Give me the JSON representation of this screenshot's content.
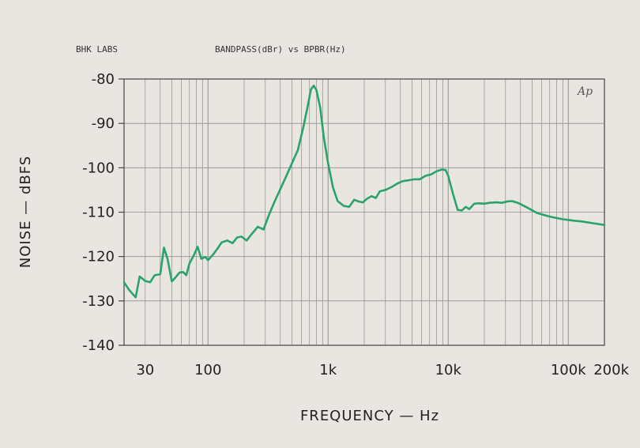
{
  "chart_data": {
    "type": "line",
    "header_left": "BHK LABS",
    "header_title": "BANDPASS(dBr) vs BPBR(Hz)",
    "watermark": "Ap",
    "xlabel": "FREQUENCY — Hz",
    "ylabel": "NOISE — dBFS",
    "x_scale": "log",
    "xlim": [
      20,
      200000
    ],
    "ylim": [
      -140,
      -80
    ],
    "x_ticks": [
      {
        "value": 30,
        "label": "30"
      },
      {
        "value": 100,
        "label": "100"
      },
      {
        "value": 1000,
        "label": "1k"
      },
      {
        "value": 10000,
        "label": "10k"
      },
      {
        "value": 100000,
        "label": "100k"
      },
      {
        "value": 200000,
        "label": "200k"
      }
    ],
    "y_ticks": [
      {
        "value": -80,
        "label": "-80"
      },
      {
        "value": -90,
        "label": "-90"
      },
      {
        "value": -100,
        "label": "-100"
      },
      {
        "value": -110,
        "label": "-110"
      },
      {
        "value": -120,
        "label": "-120"
      },
      {
        "value": -130,
        "label": "-130"
      },
      {
        "value": -140,
        "label": "-140"
      }
    ],
    "grid": true,
    "line_color": "#2aa36b",
    "grid_color": "#8f8f8f",
    "series": [
      {
        "points": [
          [
            20,
            -125.8
          ],
          [
            22,
            -127.5
          ],
          [
            25,
            -129.2
          ],
          [
            27,
            -124.5
          ],
          [
            30,
            -125.5
          ],
          [
            33,
            -125.8
          ],
          [
            36,
            -124.2
          ],
          [
            40,
            -124.0
          ],
          [
            43,
            -118.0
          ],
          [
            46,
            -120.5
          ],
          [
            50,
            -125.6
          ],
          [
            54,
            -124.6
          ],
          [
            58,
            -123.6
          ],
          [
            62,
            -123.5
          ],
          [
            66,
            -124.2
          ],
          [
            70,
            -121.6
          ],
          [
            76,
            -119.8
          ],
          [
            82,
            -117.8
          ],
          [
            88,
            -120.5
          ],
          [
            95,
            -120.1
          ],
          [
            100,
            -120.8
          ],
          [
            110,
            -119.6
          ],
          [
            120,
            -118.2
          ],
          [
            130,
            -116.8
          ],
          [
            145,
            -116.4
          ],
          [
            160,
            -117.0
          ],
          [
            175,
            -115.7
          ],
          [
            190,
            -115.5
          ],
          [
            210,
            -116.4
          ],
          [
            230,
            -115.0
          ],
          [
            260,
            -113.3
          ],
          [
            290,
            -113.9
          ],
          [
            320,
            -110.8
          ],
          [
            360,
            -107.5
          ],
          [
            400,
            -104.8
          ],
          [
            450,
            -101.8
          ],
          [
            500,
            -99.0
          ],
          [
            560,
            -96.0
          ],
          [
            620,
            -91.0
          ],
          [
            680,
            -85.8
          ],
          [
            720,
            -82.3
          ],
          [
            760,
            -81.5
          ],
          [
            800,
            -82.5
          ],
          [
            860,
            -86.5
          ],
          [
            920,
            -93.0
          ],
          [
            1000,
            -99.0
          ],
          [
            1100,
            -104.5
          ],
          [
            1200,
            -107.5
          ],
          [
            1350,
            -108.6
          ],
          [
            1500,
            -108.8
          ],
          [
            1650,
            -107.2
          ],
          [
            1800,
            -107.6
          ],
          [
            1950,
            -107.8
          ],
          [
            2100,
            -107.0
          ],
          [
            2300,
            -106.4
          ],
          [
            2500,
            -106.8
          ],
          [
            2700,
            -105.3
          ],
          [
            3000,
            -105.0
          ],
          [
            3400,
            -104.3
          ],
          [
            3800,
            -103.5
          ],
          [
            4200,
            -103.0
          ],
          [
            4700,
            -102.8
          ],
          [
            5200,
            -102.6
          ],
          [
            5800,
            -102.6
          ],
          [
            6500,
            -101.8
          ],
          [
            7200,
            -101.5
          ],
          [
            8000,
            -100.8
          ],
          [
            8800,
            -100.4
          ],
          [
            9500,
            -100.5
          ],
          [
            10000,
            -101.8
          ],
          [
            11000,
            -106.0
          ],
          [
            12000,
            -109.5
          ],
          [
            13000,
            -109.6
          ],
          [
            14000,
            -108.8
          ],
          [
            15000,
            -109.3
          ],
          [
            16500,
            -108.1
          ],
          [
            18000,
            -108.0
          ],
          [
            20000,
            -108.1
          ],
          [
            22000,
            -107.9
          ],
          [
            25000,
            -107.8
          ],
          [
            28000,
            -107.9
          ],
          [
            31000,
            -107.6
          ],
          [
            34000,
            -107.5
          ],
          [
            38000,
            -107.9
          ],
          [
            45000,
            -108.9
          ],
          [
            55000,
            -110.2
          ],
          [
            70000,
            -111.0
          ],
          [
            90000,
            -111.6
          ],
          [
            110000,
            -111.9
          ],
          [
            130000,
            -112.1
          ],
          [
            160000,
            -112.5
          ],
          [
            200000,
            -112.9
          ]
        ]
      }
    ]
  }
}
